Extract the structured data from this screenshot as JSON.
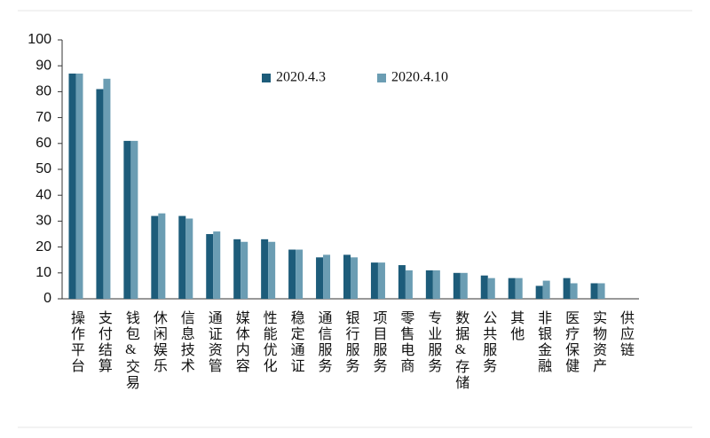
{
  "chart_data": {
    "type": "bar",
    "categories": [
      "操作平台",
      "支付结算",
      "钱包&交易",
      "休闲娱乐",
      "信息技术",
      "通证资管",
      "媒体内容",
      "性能优化",
      "稳定通证",
      "通信服务",
      "银行服务",
      "项目服务",
      "零售电商",
      "专业服务",
      "数据&存储",
      "公共服务",
      "其他",
      "非银金融",
      "医疗保健",
      "实物资产",
      "供应链"
    ],
    "series": [
      {
        "name": "2020.4.3",
        "color": "#1d5c7a",
        "values": [
          87,
          81,
          61,
          32,
          32,
          25,
          23,
          23,
          19,
          16,
          17,
          14,
          13,
          11,
          10,
          9,
          8,
          5,
          8,
          6,
          0
        ]
      },
      {
        "name": "2020.4.10",
        "color": "#6b9db3",
        "values": [
          87,
          85,
          61,
          33,
          31,
          26,
          22,
          22,
          19,
          17,
          16,
          14,
          11,
          11,
          10,
          8,
          8,
          7,
          6,
          6,
          0
        ]
      }
    ],
    "ylim": [
      0,
      100
    ],
    "yticks": [
      0,
      10,
      20,
      30,
      40,
      50,
      60,
      70,
      80,
      90,
      100
    ],
    "grid": false,
    "legend": "upper center"
  }
}
